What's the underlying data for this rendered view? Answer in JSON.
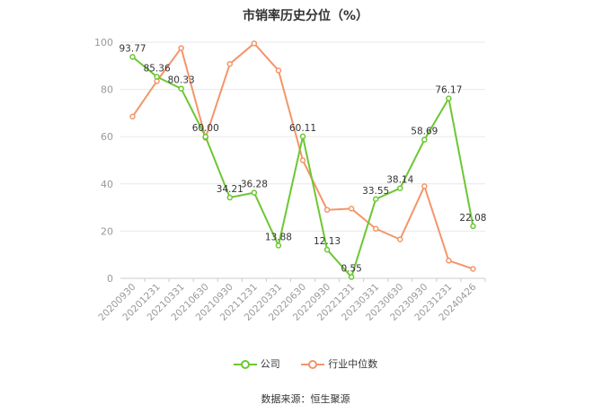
{
  "title": "市销率历史分位（%）",
  "source": "数据来源：恒生聚源",
  "colors": {
    "company": "#6cc733",
    "industry": "#f4956a",
    "grid": "#e8e8e8",
    "axis": "#999999"
  },
  "chart_data": {
    "type": "line",
    "categories": [
      "20200930",
      "20201231",
      "20210331",
      "20210630",
      "20210930",
      "20211231",
      "20220331",
      "20220630",
      "20220930",
      "20221231",
      "20230331",
      "20230630",
      "20230930",
      "20231231",
      "20240426"
    ],
    "ylim": [
      0,
      100
    ],
    "yticks": [
      0,
      20,
      40,
      60,
      80,
      100
    ],
    "grid": true,
    "legend_position": "bottom",
    "series": [
      {
        "name": "公司",
        "color": "#6cc733",
        "labeled": true,
        "values": [
          93.77,
          85.36,
          80.33,
          60.0,
          34.21,
          36.28,
          13.88,
          60.11,
          12.13,
          0.55,
          33.55,
          38.14,
          58.69,
          76.17,
          22.08
        ]
      },
      {
        "name": "行业中位数",
        "color": "#f4956a",
        "labeled": false,
        "values": [
          68.5,
          83.5,
          97.5,
          59.5,
          90.8,
          99.5,
          88.0,
          50.0,
          29.0,
          29.5,
          21.0,
          16.5,
          39.0,
          7.5,
          4.0
        ]
      }
    ]
  }
}
